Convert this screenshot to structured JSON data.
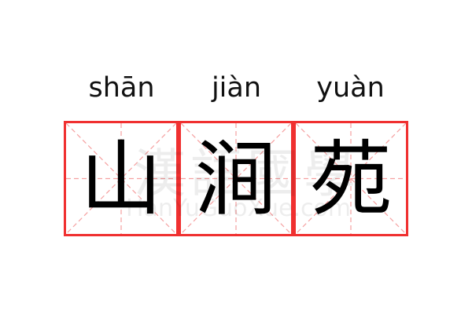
{
  "colors": {
    "grid_border": "#f03030",
    "guide_lines": "#f5a0a0",
    "text": "#000000"
  },
  "words": [
    {
      "pinyin": "shān",
      "hanzi": "山"
    },
    {
      "pinyin": "jiàn",
      "hanzi": "涧"
    },
    {
      "pinyin": "yuàn",
      "hanzi": "苑"
    }
  ],
  "watermark": {
    "hanzi": "漢語國學",
    "latin": "HanYuGuoXue.com"
  }
}
